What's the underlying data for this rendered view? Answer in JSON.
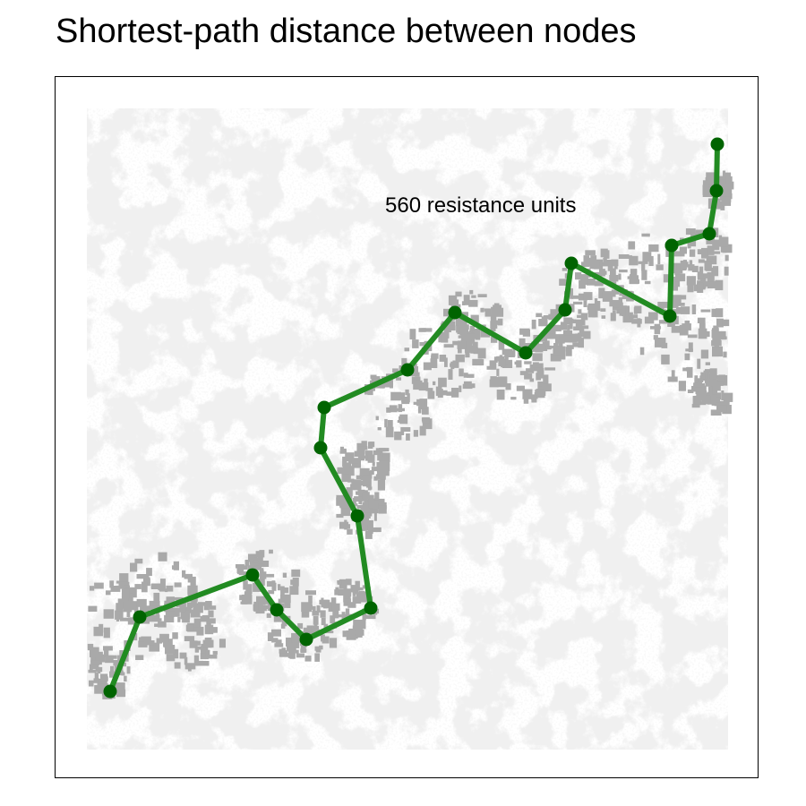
{
  "title": "Shortest-path distance between nodes",
  "annotation": {
    "text": "560 resistance units"
  },
  "colors": {
    "background": "#ffffff",
    "habitat_light": "#dedede",
    "habitat_dark": "#a9a9a9",
    "path_line": "#228b22",
    "path_node": "#006400",
    "frame": "#000000"
  }
}
